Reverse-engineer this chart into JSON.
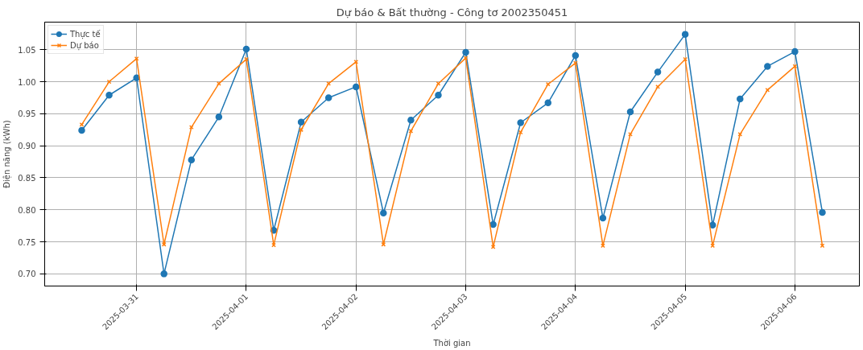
{
  "chart_data": {
    "type": "line",
    "title": "Dự báo & Bất thường - Công tơ 2002350451",
    "xlabel": "Thời gian",
    "ylabel": "Điện năng (kWh)",
    "x": [
      "2025-03-30T12:00",
      "2025-03-30T18:00",
      "2025-03-31T00:00",
      "2025-03-31T06:00",
      "2025-03-31T12:00",
      "2025-03-31T18:00",
      "2025-04-01T00:00",
      "2025-04-01T06:00",
      "2025-04-01T12:00",
      "2025-04-01T18:00",
      "2025-04-02T00:00",
      "2025-04-02T06:00",
      "2025-04-02T12:00",
      "2025-04-02T18:00",
      "2025-04-03T00:00",
      "2025-04-03T06:00",
      "2025-04-03T12:00",
      "2025-04-03T18:00",
      "2025-04-04T00:00",
      "2025-04-04T06:00",
      "2025-04-04T12:00",
      "2025-04-04T18:00",
      "2025-04-05T00:00",
      "2025-04-05T06:00",
      "2025-04-05T12:00",
      "2025-04-05T18:00",
      "2025-04-06T00:00",
      "2025-04-06T06:00"
    ],
    "series": [
      {
        "name": "Thực tế",
        "color": "#1f77b4",
        "marker": "circle",
        "values": [
          0.924,
          0.979,
          1.006,
          0.7,
          0.878,
          0.945,
          1.051,
          0.768,
          0.937,
          0.975,
          0.992,
          0.795,
          0.94,
          0.979,
          1.046,
          0.777,
          0.936,
          0.967,
          1.041,
          0.787,
          0.953,
          1.015,
          1.074,
          0.776,
          0.973,
          1.024,
          1.047,
          0.796
        ]
      },
      {
        "name": "Dự báo",
        "color": "#ff7f0e",
        "marker": "cross",
        "values": [
          0.933,
          1.0,
          1.036,
          0.746,
          0.929,
          0.997,
          1.035,
          0.745,
          0.925,
          0.997,
          1.031,
          0.746,
          0.923,
          0.997,
          1.037,
          0.742,
          0.921,
          0.996,
          1.029,
          0.744,
          0.918,
          0.992,
          1.035,
          0.744,
          0.918,
          0.987,
          1.024,
          0.744
        ]
      }
    ],
    "xlim": [
      "2025-03-30T03:54",
      "2025-04-06T14:06"
    ],
    "xticks": [
      "2025-03-31",
      "2025-04-01",
      "2025-04-02",
      "2025-04-03",
      "2025-04-04",
      "2025-04-05",
      "2025-04-06"
    ],
    "ylim": [
      0.681,
      1.093
    ],
    "yticks": [
      {
        "value": 0.7,
        "label": "0.70"
      },
      {
        "value": 0.75,
        "label": "0.75"
      },
      {
        "value": 0.8,
        "label": "0.80"
      },
      {
        "value": 0.85,
        "label": "0.85"
      },
      {
        "value": 0.9,
        "label": "0.90"
      },
      {
        "value": 0.95,
        "label": "0.95"
      },
      {
        "value": 1.0,
        "label": "1.00"
      },
      {
        "value": 1.05,
        "label": "1.05"
      }
    ],
    "grid": true,
    "legend": "top left",
    "line_style": "solid"
  }
}
